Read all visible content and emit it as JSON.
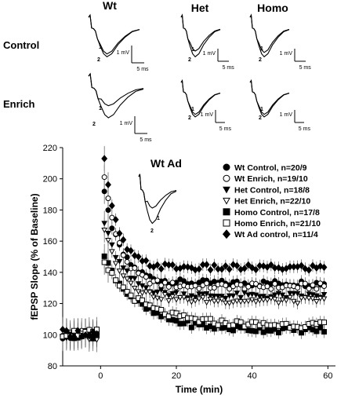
{
  "chart_data": {
    "type": "scatter",
    "title": "",
    "xlabel": "Time (min)",
    "ylabel": "fEPSP Slope (% of Baseline)",
    "xlim": [
      -10,
      62
    ],
    "ylim": [
      80,
      220
    ],
    "xticks": [
      0,
      20,
      40,
      60
    ],
    "yticks": [
      80,
      100,
      120,
      140,
      160,
      180,
      200,
      220
    ],
    "grid": false,
    "legend_position": "top-right",
    "series": [
      {
        "name": "Wt Control, n=20/9",
        "marker": "filled-circle",
        "baseline": 100,
        "peak": 190,
        "plateau": 133,
        "tau": 4.5
      },
      {
        "name": "Wt Enrich, n=19/10",
        "marker": "open-circle",
        "baseline": 101,
        "peak": 203,
        "plateau": 131,
        "tau": 4.0
      },
      {
        "name": "Het Control, n=18/8",
        "marker": "filled-triangle-down",
        "baseline": 100,
        "peak": 172,
        "plateau": 125,
        "tau": 5.0
      },
      {
        "name": "Het Enrich, n=22/10",
        "marker": "open-triangle-down",
        "baseline": 99,
        "peak": 168,
        "plateau": 122,
        "tau": 5.0
      },
      {
        "name": "Homo Control, n=17/8",
        "marker": "filled-square",
        "baseline": 100,
        "peak": 150,
        "plateau": 103,
        "tau": 9.0
      },
      {
        "name": "Homo Enrich, n=21/10",
        "marker": "open-square",
        "baseline": 101,
        "peak": 145,
        "plateau": 106,
        "tau": 10.0
      },
      {
        "name": "Wt Ad control, n=11/4",
        "marker": "filled-diamond",
        "baseline": 101,
        "peak": 212,
        "plateau": 143,
        "tau": 3.5
      }
    ],
    "trace_panels": {
      "columns": [
        "Wt",
        "Het",
        "Homo"
      ],
      "rows": [
        "Control",
        "Enrich"
      ],
      "inset_title": "Wt Ad",
      "peak_labels": [
        "1",
        "2"
      ],
      "scale_voltage": "1 mV",
      "scale_time": "5 ms"
    }
  }
}
